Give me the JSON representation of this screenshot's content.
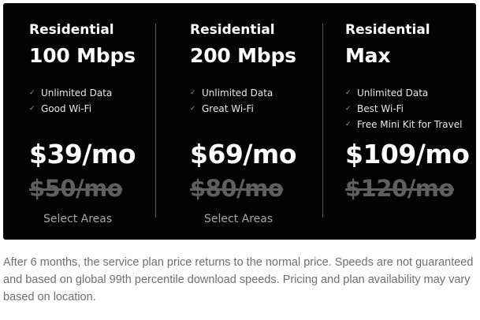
{
  "plans": [
    {
      "tier": "Residential",
      "speed": "100 Mbps",
      "features": [
        "Unlimited Data",
        "Good Wi-Fi"
      ],
      "price": "$39/mo",
      "old_price": "$50/mo",
      "note": "Select Areas"
    },
    {
      "tier": "Residential",
      "speed": "200 Mbps",
      "features": [
        "Unlimited Data",
        "Great Wi-Fi"
      ],
      "price": "$69/mo",
      "old_price": "$80/mo",
      "note": "Select Areas"
    },
    {
      "tier": "Residential",
      "speed": "Max",
      "features": [
        "Unlimited Data",
        "Best Wi-Fi",
        "Free Mini Kit for Travel"
      ],
      "price": "$109/mo",
      "old_price": "$120/mo"
    }
  ],
  "check_icon": "✓",
  "disclaimer": "After 6 months, the service plan price returns to the normal price. Speeds are not guaranteed and based on global 99th percentile download speeds. Pricing and plan availability may vary based on location.",
  "colors": {
    "panel_background": "#030303",
    "primary_text": "#ffffff",
    "strikethrough_price": "#5f5f5f",
    "muted_text": "#a8a8a8",
    "disclaimer_text": "#6f6f6f"
  }
}
